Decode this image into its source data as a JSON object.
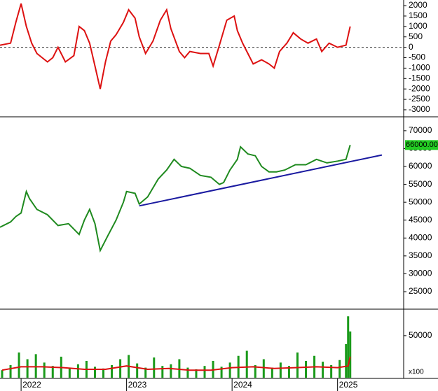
{
  "chart_data": [
    {
      "type": "line",
      "xlim": [
        2021.8,
        2025.62
      ],
      "ylim": [
        -3270,
        2270
      ],
      "yticks": [
        2000,
        1500,
        1000,
        500,
        0,
        -500,
        -1000,
        -1500,
        -2000,
        -2500,
        -3000
      ],
      "zero_line": true,
      "series": [
        {
          "kind": "line",
          "color": "#dd1111",
          "dash": false,
          "x": [
            2021.8,
            2021.9,
            2021.95,
            2022.0,
            2022.05,
            2022.1,
            2022.15,
            2022.25,
            2022.3,
            2022.35,
            2022.42,
            2022.5,
            2022.55,
            2022.6,
            2022.65,
            2022.7,
            2022.75,
            2022.8,
            2022.85,
            2022.9,
            2022.97,
            2023.02,
            2023.08,
            2023.12,
            2023.18,
            2023.25,
            2023.32,
            2023.38,
            2023.42,
            2023.5,
            2023.55,
            2023.6,
            2023.7,
            2023.78,
            2023.82,
            2023.88,
            2023.95,
            2024.02,
            2024.05,
            2024.1,
            2024.15,
            2024.2,
            2024.28,
            2024.35,
            2024.4,
            2024.45,
            2024.52,
            2024.58,
            2024.65,
            2024.72,
            2024.8,
            2024.85,
            2024.92,
            2025.0,
            2025.08,
            2025.12
          ],
          "values": [
            100,
            200,
            1200,
            2100,
            1000,
            200,
            -300,
            -700,
            -500,
            0,
            -700,
            -400,
            1000,
            800,
            200,
            -900,
            -2000,
            -700,
            300,
            600,
            1200,
            1800,
            1400,
            500,
            -300,
            300,
            1300,
            1800,
            900,
            -200,
            -500,
            -200,
            -300,
            -300,
            -900,
            100,
            1300,
            1500,
            800,
            200,
            -300,
            -800,
            -600,
            -800,
            -1000,
            -200,
            200,
            700,
            400,
            200,
            400,
            -200,
            200,
            0,
            100,
            1000
          ]
        }
      ]
    },
    {
      "type": "line",
      "xlim": [
        2021.8,
        2025.62
      ],
      "ylim": [
        20500,
        73300
      ],
      "yticks": [
        70000,
        65000,
        60000,
        55000,
        50000,
        45000,
        40000,
        35000,
        30000,
        25000
      ],
      "last_label": "66000.00",
      "series": [
        {
          "kind": "line",
          "color": "#1f8a1f",
          "x": [
            2021.8,
            2021.9,
            2021.95,
            2022.0,
            2022.05,
            2022.08,
            2022.15,
            2022.25,
            2022.35,
            2022.45,
            2022.55,
            2022.6,
            2022.65,
            2022.7,
            2022.75,
            2022.82,
            2022.9,
            2022.97,
            2023.0,
            2023.08,
            2023.12,
            2023.2,
            2023.3,
            2023.38,
            2023.45,
            2023.52,
            2023.6,
            2023.7,
            2023.8,
            2023.88,
            2023.92,
            2023.98,
            2024.05,
            2024.08,
            2024.15,
            2024.22,
            2024.28,
            2024.35,
            2024.42,
            2024.5,
            2024.6,
            2024.7,
            2024.8,
            2024.9,
            2025.0,
            2025.08,
            2025.12
          ],
          "values": [
            43000,
            44500,
            46000,
            47000,
            53000,
            51000,
            48000,
            46500,
            43500,
            44000,
            41000,
            45000,
            48000,
            44000,
            36500,
            40500,
            45000,
            50000,
            53000,
            52500,
            49500,
            51500,
            56500,
            59000,
            62000,
            60000,
            59500,
            57500,
            57000,
            55000,
            55500,
            59000,
            62000,
            65500,
            63500,
            63000,
            60000,
            58500,
            58500,
            59000,
            60500,
            60500,
            62000,
            61000,
            61500,
            62000,
            66000
          ]
        },
        {
          "kind": "line",
          "color": "#1a1aa0",
          "x": [
            2023.12,
            2025.42
          ],
          "values": [
            49000,
            63200
          ]
        }
      ]
    },
    {
      "type": "bar",
      "xlim": [
        2021.8,
        2025.62
      ],
      "ylim": [
        0,
        79000
      ],
      "yticks": [
        50000
      ],
      "xticks": [
        2022,
        2023,
        2024,
        2025
      ],
      "unit_label": "x100",
      "series": [
        {
          "kind": "bar",
          "color": "#1a9a1a",
          "x": [
            2021.82,
            2021.9,
            2021.98,
            2022.06,
            2022.14,
            2022.22,
            2022.3,
            2022.38,
            2022.46,
            2022.54,
            2022.62,
            2022.7,
            2022.78,
            2022.86,
            2022.94,
            2023.02,
            2023.1,
            2023.18,
            2023.26,
            2023.34,
            2023.42,
            2023.5,
            2023.58,
            2023.66,
            2023.74,
            2023.82,
            2023.9,
            2023.98,
            2024.06,
            2024.14,
            2024.22,
            2024.3,
            2024.38,
            2024.46,
            2024.54,
            2024.62,
            2024.7,
            2024.78,
            2024.86,
            2024.94,
            2025.02,
            2025.08,
            2025.1,
            2025.12
          ],
          "values": [
            9000,
            15000,
            30000,
            22000,
            28000,
            18000,
            14000,
            25000,
            12000,
            16000,
            20000,
            13000,
            11000,
            15000,
            22000,
            27000,
            17000,
            12000,
            24000,
            14000,
            16000,
            22000,
            12000,
            10000,
            14000,
            20000,
            13000,
            18000,
            26000,
            32000,
            15000,
            22000,
            12000,
            18000,
            14000,
            30000,
            20000,
            26000,
            19000,
            15000,
            21000,
            40000,
            73000,
            55000
          ]
        },
        {
          "kind": "line",
          "color": "#dd1111",
          "x": [
            2021.82,
            2022.0,
            2022.2,
            2022.4,
            2022.6,
            2022.8,
            2023.0,
            2023.2,
            2023.4,
            2023.6,
            2023.8,
            2024.0,
            2024.2,
            2024.4,
            2024.6,
            2024.8,
            2025.0,
            2025.1,
            2025.12
          ],
          "values": [
            9000,
            13000,
            13000,
            12000,
            10000,
            10000,
            14000,
            10000,
            11000,
            9000,
            9000,
            12000,
            13000,
            11000,
            12000,
            13000,
            12000,
            14000,
            25000
          ]
        }
      ]
    }
  ]
}
